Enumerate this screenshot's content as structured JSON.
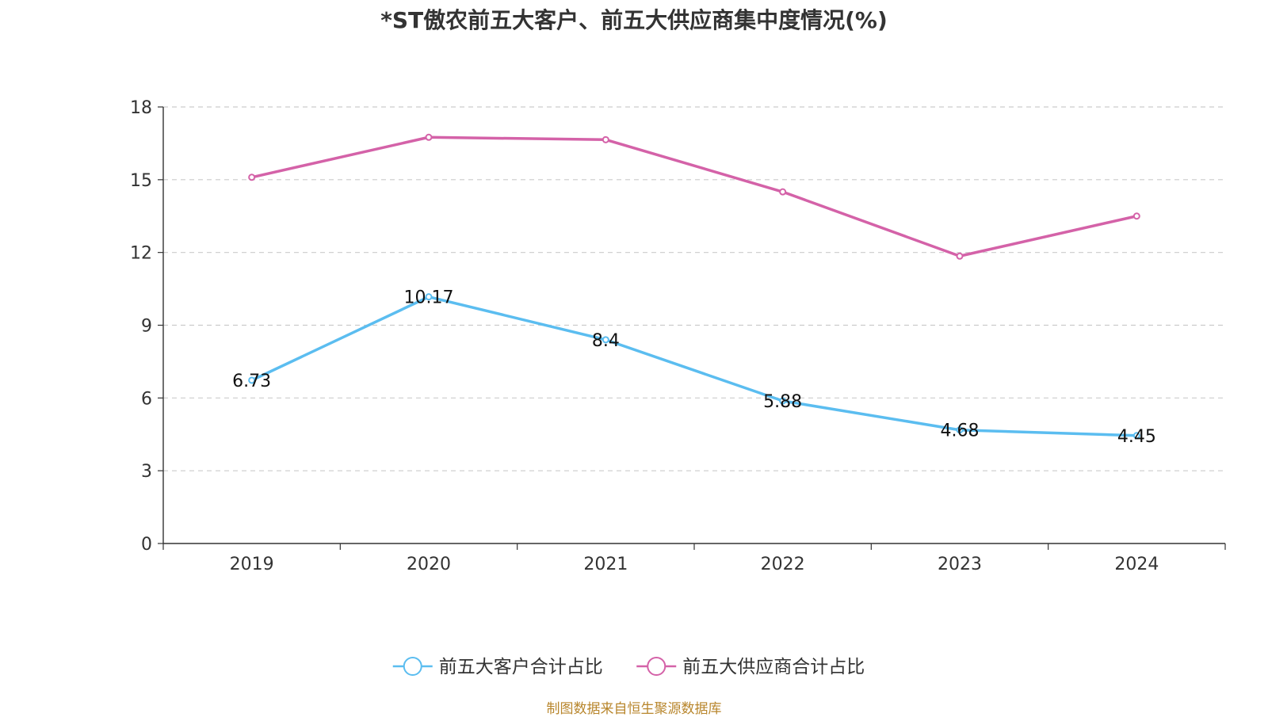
{
  "chart_data": {
    "type": "line",
    "title": "*ST傲农前五大客户、前五大供应商集中度情况(%)",
    "categories": [
      "2019",
      "2020",
      "2021",
      "2022",
      "2023",
      "2024"
    ],
    "series": [
      {
        "name": "前五大客户合计占比",
        "color": "#5bbdf0",
        "values": [
          6.73,
          10.17,
          8.4,
          5.88,
          4.68,
          4.45
        ],
        "show_labels": true
      },
      {
        "name": "前五大供应商合计占比",
        "color": "#d462a8",
        "values": [
          15.1,
          16.75,
          16.65,
          14.5,
          11.85,
          13.5
        ],
        "show_labels": false
      }
    ],
    "ylim": [
      0,
      18
    ],
    "yticks": [
      0,
      3,
      6,
      9,
      12,
      15,
      18
    ],
    "grid": true,
    "legend": "bottom-center"
  },
  "footer": {
    "source": "制图数据来自恒生聚源数据库"
  }
}
